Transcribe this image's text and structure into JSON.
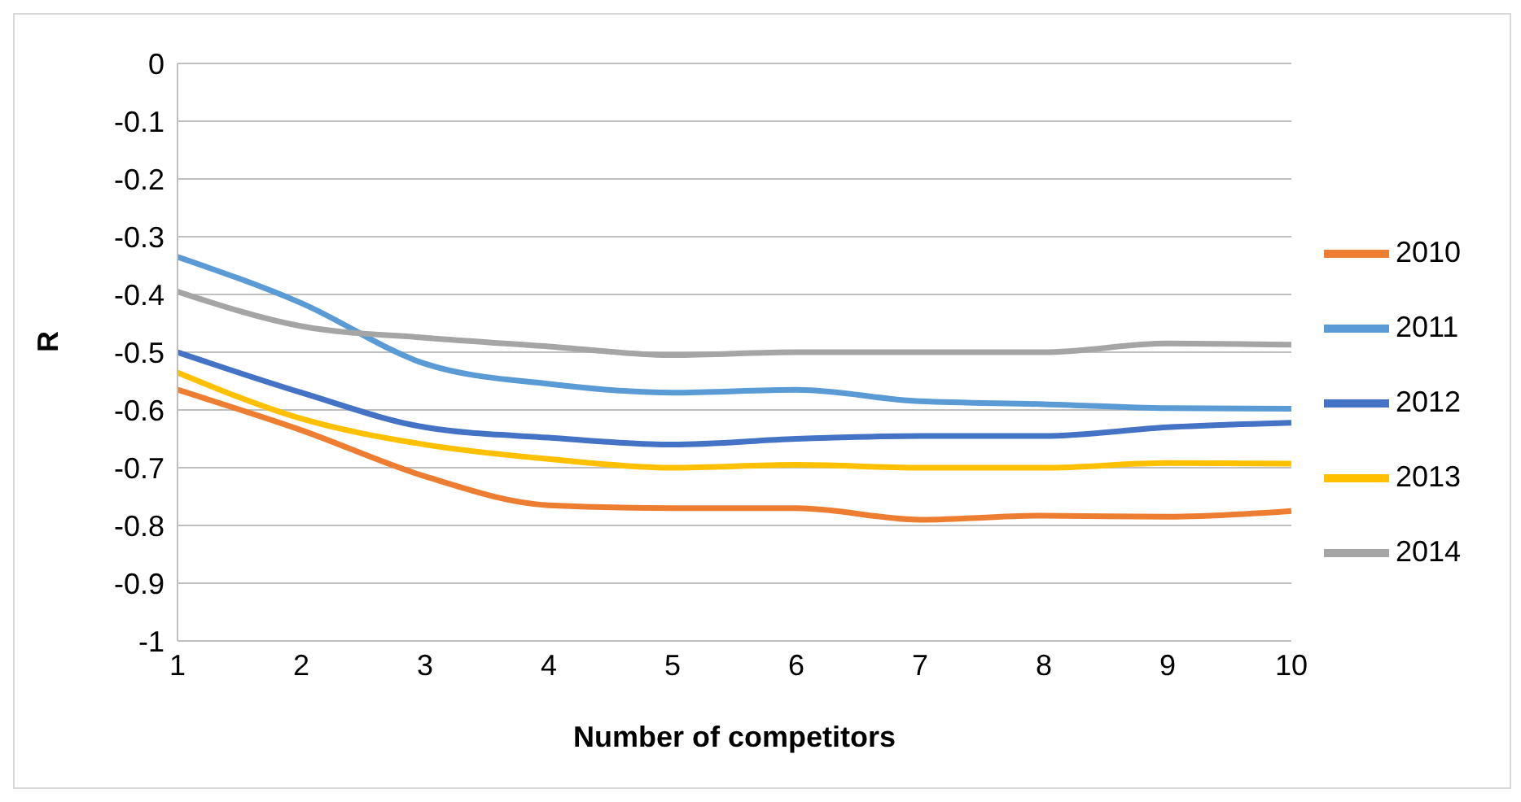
{
  "chart_data": {
    "type": "line",
    "xlabel": "Number of competitors",
    "ylabel": "R",
    "x": [
      1,
      2,
      3,
      4,
      5,
      6,
      7,
      8,
      9,
      10
    ],
    "series": [
      {
        "name": "2010",
        "color": "#ed7d31",
        "values": [
          -0.565,
          -0.635,
          -0.715,
          -0.765,
          -0.77,
          -0.77,
          -0.79,
          -0.783,
          -0.785,
          -0.775
        ]
      },
      {
        "name": "2011",
        "color": "#5b9bd5",
        "values": [
          -0.335,
          -0.415,
          -0.52,
          -0.555,
          -0.57,
          -0.565,
          -0.585,
          -0.59,
          -0.597,
          -0.598
        ]
      },
      {
        "name": "2012",
        "color": "#4472c4",
        "values": [
          -0.5,
          -0.57,
          -0.63,
          -0.648,
          -0.66,
          -0.65,
          -0.645,
          -0.645,
          -0.63,
          -0.622
        ]
      },
      {
        "name": "2013",
        "color": "#ffc000",
        "values": [
          -0.535,
          -0.615,
          -0.66,
          -0.685,
          -0.7,
          -0.695,
          -0.7,
          -0.7,
          -0.692,
          -0.693
        ]
      },
      {
        "name": "2014",
        "color": "#a5a5a5",
        "values": [
          -0.395,
          -0.455,
          -0.475,
          -0.49,
          -0.505,
          -0.5,
          -0.5,
          -0.5,
          -0.485,
          -0.487
        ]
      }
    ],
    "xlim": [
      1,
      10
    ],
    "xticks": [
      1,
      2,
      3,
      4,
      5,
      6,
      7,
      8,
      9,
      10
    ],
    "ylim": [
      -1,
      0
    ],
    "yticks": [
      -1,
      -0.9,
      -0.8,
      -0.7,
      -0.6,
      -0.5,
      -0.4,
      -0.3,
      -0.2,
      -0.1,
      0
    ],
    "grid": "y",
    "legend": "right",
    "marker": "none",
    "line_style": "solid"
  }
}
